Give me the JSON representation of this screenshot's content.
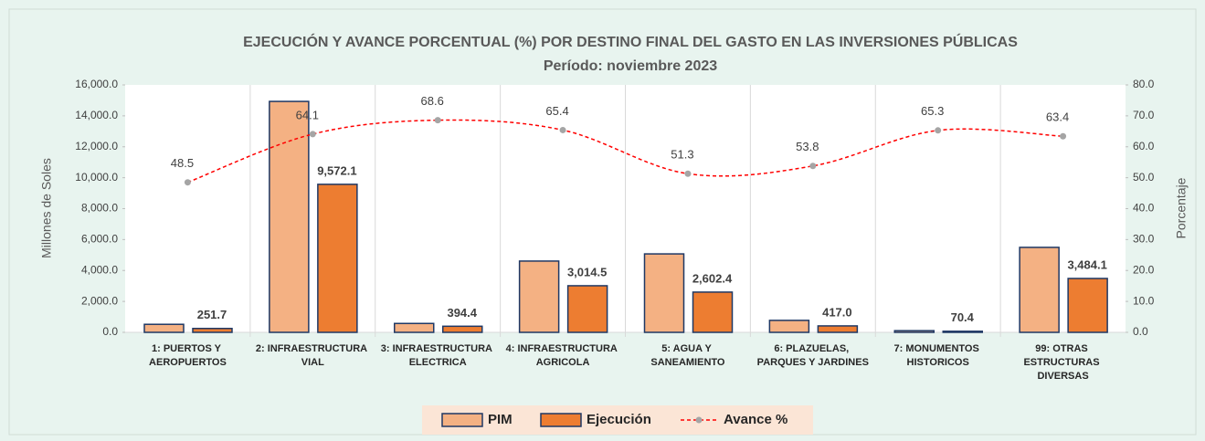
{
  "chart_data": {
    "type": "bar_line",
    "title": "EJECUCIÓN Y AVANCE PORCENTUAL (%)  POR DESTINO FINAL DEL GASTO EN LAS INVERSIONES PÚBLICAS",
    "subtitle": "Período:  noviembre 2023",
    "y_label": "Millones de Soles",
    "y2_label": "Porcentaje",
    "categories": [
      "1: PUERTOS Y AEROPUERTOS",
      "2: INFRAESTRUCTURA VIAL",
      "3: INFRAESTRUCTURA ELECTRICA",
      "4: INFRAESTRUCTURA AGRICOLA",
      "5: AGUA Y SANEAMIENTO",
      "6: PLAZUELAS, PARQUES Y JARDINES",
      "7: MONUMENTOS HISTORICOS",
      "99: OTRAS ESTRUCTURAS DIVERSAS"
    ],
    "series": [
      {
        "name": "PIM",
        "color": "#f4b183",
        "values": [
          519,
          14933,
          575,
          4609,
          5073,
          775,
          108,
          5495
        ]
      },
      {
        "name": "Ejecución",
        "color": "#ed7d31",
        "values": [
          251.7,
          9572.1,
          394.4,
          3014.5,
          2602.4,
          417.0,
          70.4,
          3484.1
        ],
        "value_labels": [
          "251.7",
          "9,572.1",
          "394.4",
          "3,014.5",
          "2,602.4",
          "417.0",
          "70.4",
          "3,484.1"
        ]
      },
      {
        "name": "Avance %",
        "color": "#ff0000",
        "axis": "y2",
        "values": [
          48.5,
          64.1,
          68.6,
          65.4,
          51.3,
          53.8,
          65.3,
          63.4
        ]
      }
    ],
    "ylim": [
      0,
      16000
    ],
    "yticks": [
      {
        "value": 0,
        "label": "0.0"
      },
      {
        "value": 2000,
        "label": "2,000.0"
      },
      {
        "value": 4000,
        "label": "4,000.0"
      },
      {
        "value": 6000,
        "label": "6,000.0"
      },
      {
        "value": 8000,
        "label": "8,000.0"
      },
      {
        "value": 10000,
        "label": "10,000.0"
      },
      {
        "value": 12000,
        "label": "12,000.0"
      },
      {
        "value": 14000,
        "label": "14,000.0"
      },
      {
        "value": 16000,
        "label": "16,000.0"
      }
    ],
    "y2lim": [
      0,
      80
    ],
    "y2ticks": [
      {
        "value": 0,
        "label": "0.0"
      },
      {
        "value": 10,
        "label": "10.0"
      },
      {
        "value": 20,
        "label": "20.0"
      },
      {
        "value": 30,
        "label": "30.0"
      },
      {
        "value": 40,
        "label": "40.0"
      },
      {
        "value": 50,
        "label": "50.0"
      },
      {
        "value": 60,
        "label": "60.0"
      },
      {
        "value": 70,
        "label": "70.0"
      },
      {
        "value": 80,
        "label": "80.0"
      }
    ],
    "grid": false
  }
}
